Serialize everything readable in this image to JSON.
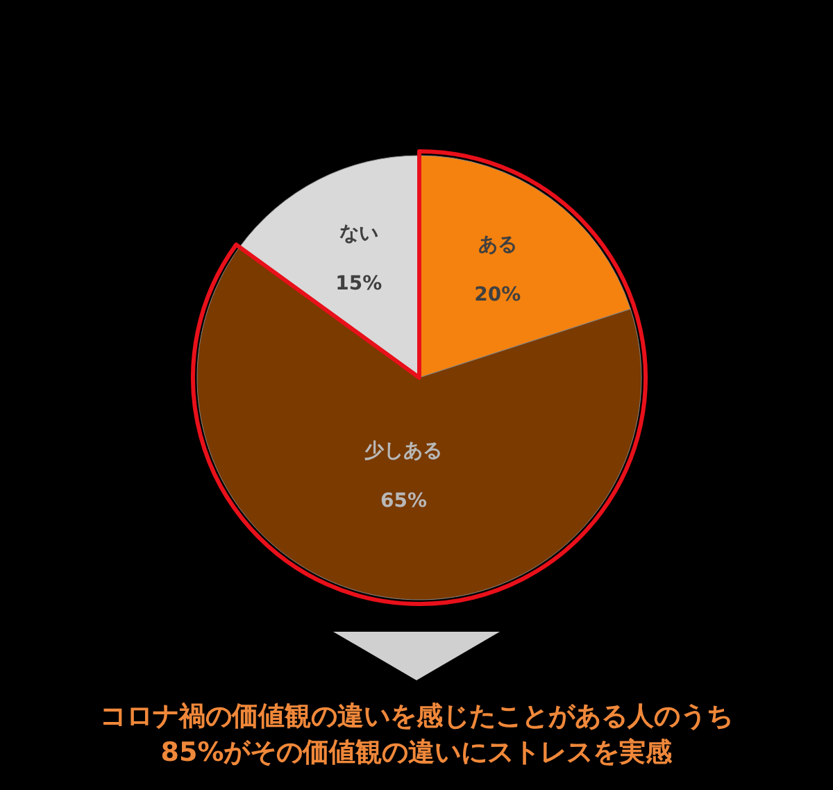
{
  "chart_data": {
    "type": "pie",
    "categories": [
      "ある",
      "少しある",
      "ない"
    ],
    "values": [
      20,
      65,
      15
    ],
    "colors": [
      "#f5820f",
      "#7a3a00",
      "#d9d9d9"
    ],
    "value_labels": [
      "20%",
      "65%",
      "15%"
    ],
    "annotations": [
      "コロナ禍の価値観の違いを感じたことがある人のうち",
      "85%がその価値観の違いにストレスを実感"
    ]
  }
}
